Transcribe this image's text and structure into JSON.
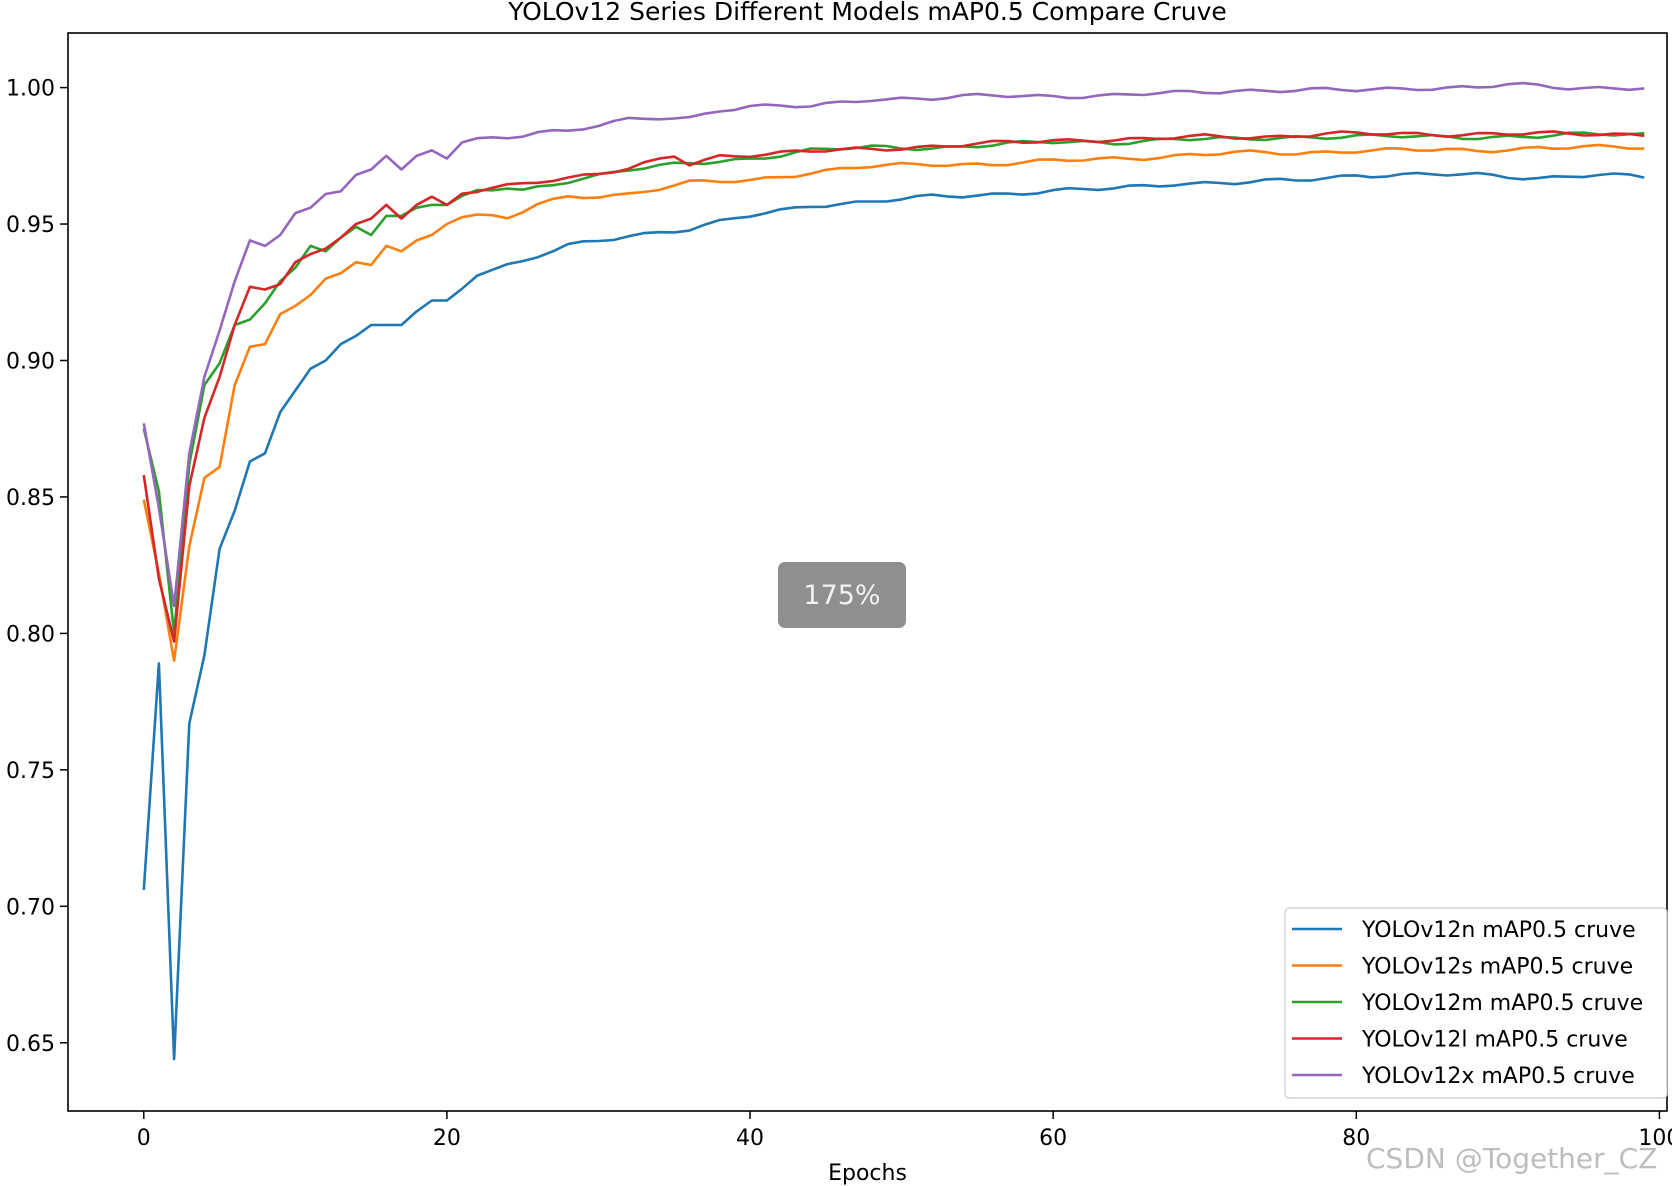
{
  "chart_data": {
    "type": "line",
    "title": "YOLOv12 Series Different Models mAP0.5 Compare Cruve",
    "xlabel": "Epochs",
    "ylabel": "",
    "xlim": [
      -5,
      100.5
    ],
    "ylim": [
      0.625,
      1.02
    ],
    "x_ticks": [
      0,
      20,
      40,
      60,
      80,
      100
    ],
    "y_ticks": [
      0.65,
      0.7,
      0.75,
      0.8,
      0.85,
      0.9,
      0.95,
      1.0
    ],
    "grid": false,
    "legend_position": "lower-right",
    "series": [
      {
        "name": "YOLOv12n mAP0.5 cruve",
        "color": "#1f77b4",
        "key_points": [
          [
            0,
            0.706
          ],
          [
            1,
            0.789
          ],
          [
            2,
            0.644
          ],
          [
            3,
            0.767
          ],
          [
            4,
            0.792
          ],
          [
            5,
            0.831
          ],
          [
            6,
            0.845
          ],
          [
            7,
            0.863
          ],
          [
            8,
            0.866
          ],
          [
            9,
            0.881
          ],
          [
            10,
            0.889
          ],
          [
            11,
            0.897
          ],
          [
            12,
            0.9
          ],
          [
            13,
            0.906
          ],
          [
            14,
            0.909
          ],
          [
            15,
            0.913
          ],
          [
            16,
            0.913
          ],
          [
            17,
            0.913
          ],
          [
            18,
            0.918
          ],
          [
            19,
            0.922
          ],
          [
            20,
            0.922
          ],
          [
            22,
            0.932
          ],
          [
            25,
            0.936
          ],
          [
            28,
            0.942
          ],
          [
            32,
            0.946
          ],
          [
            36,
            0.948
          ],
          [
            40,
            0.953
          ],
          [
            44,
            0.957
          ],
          [
            48,
            0.958
          ],
          [
            52,
            0.96
          ],
          [
            56,
            0.961
          ],
          [
            60,
            0.962
          ],
          [
            64,
            0.963
          ],
          [
            68,
            0.965
          ],
          [
            72,
            0.965
          ],
          [
            76,
            0.966
          ],
          [
            80,
            0.968
          ],
          [
            84,
            0.968
          ],
          [
            88,
            0.968
          ],
          [
            92,
            0.967
          ],
          [
            96,
            0.968
          ],
          [
            99,
            0.967
          ]
        ]
      },
      {
        "name": "YOLOv12s mAP0.5 cruve",
        "color": "#ff7f0e",
        "key_points": [
          [
            0,
            0.849
          ],
          [
            1,
            0.822
          ],
          [
            2,
            0.79
          ],
          [
            3,
            0.832
          ],
          [
            4,
            0.857
          ],
          [
            5,
            0.861
          ],
          [
            6,
            0.891
          ],
          [
            7,
            0.905
          ],
          [
            8,
            0.906
          ],
          [
            9,
            0.917
          ],
          [
            10,
            0.92
          ],
          [
            11,
            0.924
          ],
          [
            12,
            0.93
          ],
          [
            13,
            0.932
          ],
          [
            14,
            0.936
          ],
          [
            15,
            0.935
          ],
          [
            16,
            0.942
          ],
          [
            17,
            0.94
          ],
          [
            18,
            0.944
          ],
          [
            19,
            0.946
          ],
          [
            20,
            0.95
          ],
          [
            21,
            0.953
          ],
          [
            22,
            0.953
          ],
          [
            24,
            0.952
          ],
          [
            26,
            0.957
          ],
          [
            28,
            0.96
          ],
          [
            32,
            0.961
          ],
          [
            36,
            0.965
          ],
          [
            40,
            0.966
          ],
          [
            44,
            0.969
          ],
          [
            48,
            0.971
          ],
          [
            52,
            0.972
          ],
          [
            56,
            0.972
          ],
          [
            60,
            0.973
          ],
          [
            64,
            0.974
          ],
          [
            68,
            0.975
          ],
          [
            72,
            0.976
          ],
          [
            76,
            0.976
          ],
          [
            80,
            0.977
          ],
          [
            84,
            0.977
          ],
          [
            88,
            0.977
          ],
          [
            92,
            0.978
          ],
          [
            96,
            0.978
          ],
          [
            99,
            0.978
          ]
        ]
      },
      {
        "name": "YOLOv12m mAP0.5 cruve",
        "color": "#2ca02c",
        "key_points": [
          [
            0,
            0.875
          ],
          [
            1,
            0.852
          ],
          [
            2,
            0.8
          ],
          [
            3,
            0.862
          ],
          [
            4,
            0.891
          ],
          [
            5,
            0.899
          ],
          [
            6,
            0.913
          ],
          [
            7,
            0.915
          ],
          [
            8,
            0.921
          ],
          [
            9,
            0.929
          ],
          [
            10,
            0.934
          ],
          [
            11,
            0.942
          ],
          [
            12,
            0.94
          ],
          [
            13,
            0.945
          ],
          [
            14,
            0.949
          ],
          [
            15,
            0.946
          ],
          [
            16,
            0.953
          ],
          [
            17,
            0.953
          ],
          [
            18,
            0.956
          ],
          [
            19,
            0.957
          ],
          [
            20,
            0.957
          ],
          [
            22,
            0.962
          ],
          [
            24,
            0.963
          ],
          [
            25,
            0.962
          ],
          [
            28,
            0.966
          ],
          [
            32,
            0.97
          ],
          [
            36,
            0.972
          ],
          [
            40,
            0.974
          ],
          [
            44,
            0.977
          ],
          [
            48,
            0.978
          ],
          [
            52,
            0.978
          ],
          [
            56,
            0.979
          ],
          [
            60,
            0.98
          ],
          [
            64,
            0.98
          ],
          [
            68,
            0.981
          ],
          [
            72,
            0.981
          ],
          [
            76,
            0.982
          ],
          [
            80,
            0.982
          ],
          [
            84,
            0.982
          ],
          [
            88,
            0.982
          ],
          [
            92,
            0.982
          ],
          [
            96,
            0.983
          ],
          [
            99,
            0.983
          ]
        ]
      },
      {
        "name": "YOLOv12l mAP0.5 cruve",
        "color": "#d62728",
        "key_points": [
          [
            0,
            0.858
          ],
          [
            1,
            0.82
          ],
          [
            2,
            0.797
          ],
          [
            3,
            0.854
          ],
          [
            4,
            0.879
          ],
          [
            5,
            0.894
          ],
          [
            6,
            0.913
          ],
          [
            7,
            0.927
          ],
          [
            8,
            0.926
          ],
          [
            9,
            0.928
          ],
          [
            10,
            0.936
          ],
          [
            11,
            0.939
          ],
          [
            12,
            0.941
          ],
          [
            13,
            0.945
          ],
          [
            14,
            0.95
          ],
          [
            15,
            0.952
          ],
          [
            16,
            0.957
          ],
          [
            17,
            0.952
          ],
          [
            18,
            0.957
          ],
          [
            19,
            0.96
          ],
          [
            20,
            0.957
          ],
          [
            21,
            0.961
          ],
          [
            22,
            0.962
          ],
          [
            24,
            0.964
          ],
          [
            26,
            0.966
          ],
          [
            28,
            0.967
          ],
          [
            32,
            0.97
          ],
          [
            35,
            0.975
          ],
          [
            36,
            0.972
          ],
          [
            38,
            0.975
          ],
          [
            42,
            0.976
          ],
          [
            46,
            0.977
          ],
          [
            50,
            0.978
          ],
          [
            54,
            0.979
          ],
          [
            58,
            0.98
          ],
          [
            62,
            0.981
          ],
          [
            66,
            0.981
          ],
          [
            70,
            0.982
          ],
          [
            74,
            0.982
          ],
          [
            78,
            0.983
          ],
          [
            82,
            0.983
          ],
          [
            86,
            0.983
          ],
          [
            90,
            0.983
          ],
          [
            94,
            0.983
          ],
          [
            99,
            0.983
          ]
        ]
      },
      {
        "name": "YOLOv12x mAP0.5 cruve",
        "color": "#9467bd",
        "key_points": [
          [
            0,
            0.877
          ],
          [
            1,
            0.846
          ],
          [
            2,
            0.81
          ],
          [
            3,
            0.866
          ],
          [
            4,
            0.894
          ],
          [
            5,
            0.911
          ],
          [
            6,
            0.929
          ],
          [
            7,
            0.944
          ],
          [
            8,
            0.942
          ],
          [
            9,
            0.946
          ],
          [
            10,
            0.954
          ],
          [
            11,
            0.956
          ],
          [
            12,
            0.961
          ],
          [
            13,
            0.962
          ],
          [
            14,
            0.968
          ],
          [
            15,
            0.97
          ],
          [
            16,
            0.975
          ],
          [
            17,
            0.97
          ],
          [
            18,
            0.975
          ],
          [
            19,
            0.977
          ],
          [
            20,
            0.974
          ],
          [
            21,
            0.98
          ],
          [
            22,
            0.981
          ],
          [
            24,
            0.982
          ],
          [
            26,
            0.984
          ],
          [
            28,
            0.984
          ],
          [
            30,
            0.986
          ],
          [
            32,
            0.988
          ],
          [
            34,
            0.989
          ],
          [
            36,
            0.989
          ],
          [
            38,
            0.992
          ],
          [
            40,
            0.993
          ],
          [
            44,
            0.993
          ],
          [
            48,
            0.996
          ],
          [
            52,
            0.996
          ],
          [
            56,
            0.997
          ],
          [
            60,
            0.997
          ],
          [
            64,
            0.997
          ],
          [
            68,
            0.998
          ],
          [
            72,
            0.999
          ],
          [
            76,
            0.999
          ],
          [
            80,
            0.999
          ],
          [
            84,
            1.0
          ],
          [
            88,
            1.0
          ],
          [
            90,
            1.001
          ],
          [
            94,
            1.0
          ],
          [
            99,
            1.0
          ]
        ]
      }
    ]
  },
  "overlay": {
    "zoom_label": "175%",
    "watermark": "CSDN @Together_CZ"
  }
}
